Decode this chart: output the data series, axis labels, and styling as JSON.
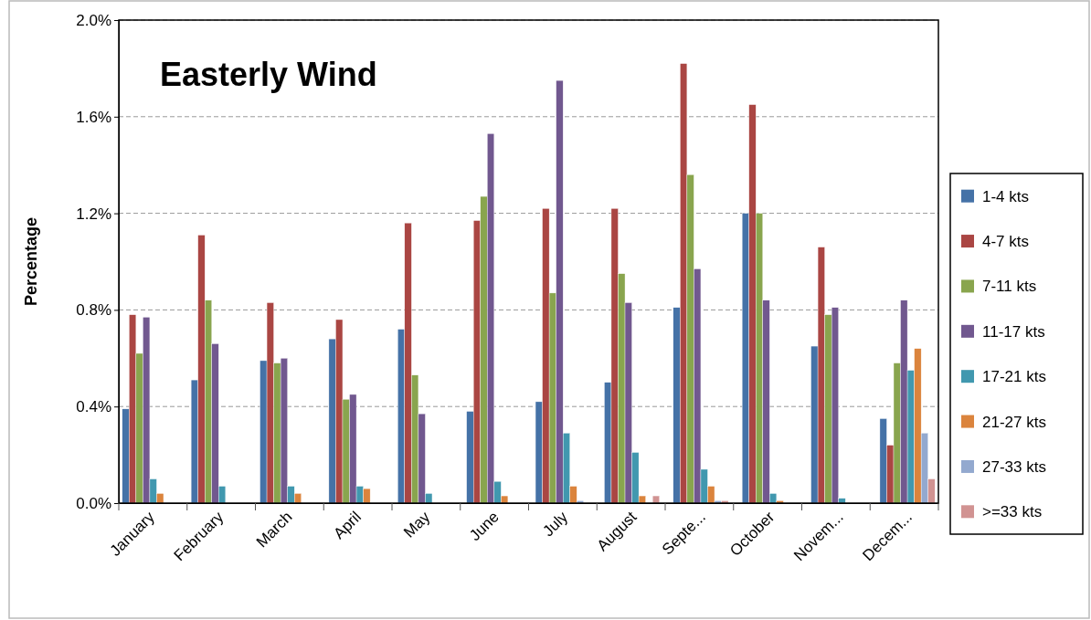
{
  "chart_data": {
    "type": "bar",
    "title": "Easterly Wind",
    "ylabel": "Percentage",
    "categories": [
      "January",
      "February",
      "March",
      "April",
      "May",
      "June",
      "July",
      "August",
      "Septe...",
      "October",
      "Novem...",
      "Decem..."
    ],
    "series": [
      {
        "name": "1-4 kts",
        "color": "#4572a7",
        "values": [
          0.39,
          0.51,
          0.59,
          0.68,
          0.72,
          0.38,
          0.42,
          0.5,
          0.81,
          1.2,
          0.65,
          0.35
        ]
      },
      {
        "name": "4-7 kts",
        "color": "#aa4643",
        "values": [
          0.78,
          1.11,
          0.83,
          0.76,
          1.16,
          1.17,
          1.22,
          1.22,
          1.82,
          1.65,
          1.06,
          0.24
        ]
      },
      {
        "name": "7-11 kts",
        "color": "#89a54e",
        "values": [
          0.62,
          0.84,
          0.58,
          0.43,
          0.53,
          1.27,
          0.87,
          0.95,
          1.36,
          1.2,
          0.78,
          0.58
        ]
      },
      {
        "name": "11-17 kts",
        "color": "#71588f",
        "values": [
          0.77,
          0.66,
          0.6,
          0.45,
          0.37,
          1.53,
          1.75,
          0.83,
          0.97,
          0.84,
          0.81,
          0.84
        ]
      },
      {
        "name": "17-21 kts",
        "color": "#4198af",
        "values": [
          0.1,
          0.07,
          0.07,
          0.07,
          0.04,
          0.09,
          0.29,
          0.21,
          0.14,
          0.04,
          0.02,
          0.55
        ]
      },
      {
        "name": "21-27 kts",
        "color": "#db843d",
        "values": [
          0.04,
          0,
          0.04,
          0.06,
          0,
          0.03,
          0.07,
          0.03,
          0.07,
          0.01,
          0,
          0.64
        ]
      },
      {
        "name": "27-33 kts",
        "color": "#93a9cf",
        "values": [
          0,
          0,
          0,
          0,
          0,
          0,
          0.01,
          0,
          0.01,
          0,
          0,
          0.29
        ]
      },
      {
        "name": ">=33 kts",
        "color": "#d19392",
        "values": [
          0,
          0,
          0,
          0,
          0,
          0,
          0,
          0.03,
          0.01,
          0,
          0,
          0.1
        ]
      }
    ],
    "ylim": [
      0,
      2
    ],
    "yticks": [
      {
        "value": 0,
        "label": "0.0%"
      },
      {
        "value": 0.4,
        "label": "0.4%"
      },
      {
        "value": 0.8,
        "label": "0.8%"
      },
      {
        "value": 1.2,
        "label": "1.2%"
      },
      {
        "value": 1.6,
        "label": "1.6%"
      },
      {
        "value": 2,
        "label": "2.0%"
      }
    ],
    "grid": "y",
    "legend": "right"
  }
}
